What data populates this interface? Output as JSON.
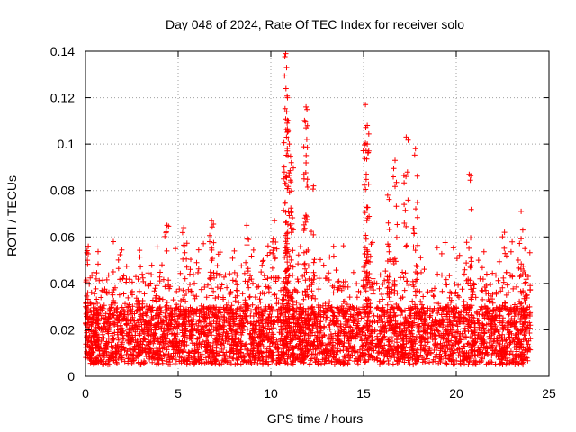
{
  "chart_data": {
    "type": "scatter",
    "title": "Day 048 of 2024, Rate Of TEC Index for receiver solo",
    "xlabel": "GPS time / hours",
    "ylabel": "ROTI / TECUs",
    "xlim": [
      0,
      25
    ],
    "ylim": [
      0,
      0.14
    ],
    "xticks": [
      0,
      5,
      10,
      15,
      20,
      25
    ],
    "yticks": [
      0,
      0.02,
      0.04,
      0.06,
      0.08,
      0.1,
      0.12,
      0.14
    ],
    "xtick_labels": [
      "0",
      "5",
      "10",
      "15",
      "20",
      "25"
    ],
    "ytick_labels": [
      "0",
      "0.02",
      "0.04",
      "0.06",
      "0.08",
      "0.1",
      "0.12",
      "0.14"
    ],
    "grid": true,
    "marker": "+",
    "marker_color": "#ff0000",
    "data_range_hours": [
      0,
      24
    ],
    "baseline_roti_range": [
      0.005,
      0.03
    ],
    "series": [
      {
        "name": "ROTI",
        "notable_points": [
          {
            "x": 0.1,
            "y": 0.05
          },
          {
            "x": 0.15,
            "y": 0.056
          },
          {
            "x": 1.5,
            "y": 0.045
          },
          {
            "x": 4.4,
            "y": 0.065
          },
          {
            "x": 5.3,
            "y": 0.064
          },
          {
            "x": 6.8,
            "y": 0.067
          },
          {
            "x": 8.7,
            "y": 0.065
          },
          {
            "x": 10.2,
            "y": 0.067
          },
          {
            "x": 10.8,
            "y": 0.139
          },
          {
            "x": 10.85,
            "y": 0.133
          },
          {
            "x": 10.9,
            "y": 0.12
          },
          {
            "x": 10.95,
            "y": 0.11
          },
          {
            "x": 11,
            "y": 0.1
          },
          {
            "x": 11.1,
            "y": 0.092
          },
          {
            "x": 11.9,
            "y": 0.116
          },
          {
            "x": 11.9,
            "y": 0.107
          },
          {
            "x": 12.3,
            "y": 0.082
          },
          {
            "x": 15.1,
            "y": 0.117
          },
          {
            "x": 15.2,
            "y": 0.108
          },
          {
            "x": 15.2,
            "y": 0.1
          },
          {
            "x": 16.3,
            "y": 0.078
          },
          {
            "x": 16.7,
            "y": 0.093
          },
          {
            "x": 17.3,
            "y": 0.103
          },
          {
            "x": 17.8,
            "y": 0.098
          },
          {
            "x": 20.7,
            "y": 0.087
          },
          {
            "x": 22.6,
            "y": 0.062
          },
          {
            "x": 23.5,
            "y": 0.071
          },
          {
            "x": 23.7,
            "y": 0.055
          }
        ]
      }
    ]
  }
}
